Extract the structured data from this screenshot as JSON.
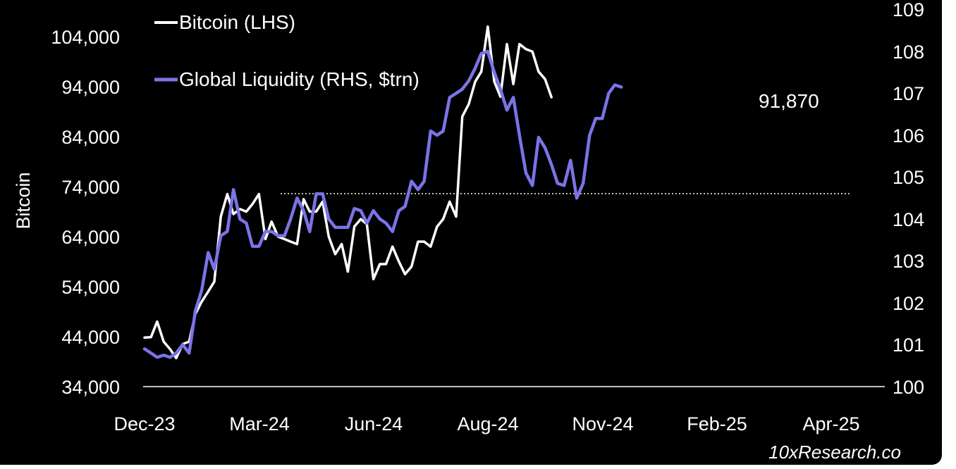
{
  "source": "10xResearch.co",
  "chart_data": {
    "type": "line",
    "title": "",
    "ylabel_left": "Bitcoin",
    "ylabel_right": "",
    "x_tick_labels": [
      "Dec-23",
      "Mar-24",
      "Jun-24",
      "Aug-24",
      "Nov-24",
      "Feb-25",
      "Apr-25"
    ],
    "y_left_ticks": [
      "34,000",
      "44,000",
      "54,000",
      "64,000",
      "74,000",
      "84,000",
      "94,000",
      "104,000"
    ],
    "y_right_ticks": [
      "100",
      "101",
      "102",
      "103",
      "104",
      "105",
      "106",
      "107",
      "108",
      "109"
    ],
    "y_left_range": [
      34000,
      104000
    ],
    "y_right_range": [
      100,
      109
    ],
    "grid": false,
    "legend_position": "top-left",
    "colors": {
      "bitcoin": "#ffffff",
      "liquidity": "#7b73e6",
      "reference_line": "#ffffff"
    },
    "annotation": "91,870",
    "reference_line_value": 72600,
    "series": [
      {
        "name": "Bitcoin (LHS)",
        "axis": "left",
        "color": "#ffffff",
        "points": [
          [
            0.0,
            43800
          ],
          [
            0.17,
            43900
          ],
          [
            0.33,
            47000
          ],
          [
            0.5,
            43000
          ],
          [
            0.67,
            41500
          ],
          [
            0.83,
            39700
          ],
          [
            1.0,
            42500
          ],
          [
            1.17,
            43000
          ],
          [
            1.33,
            48500
          ],
          [
            1.5,
            51000
          ],
          [
            1.67,
            53000
          ],
          [
            1.83,
            55000
          ],
          [
            2.0,
            68000
          ],
          [
            2.17,
            72500
          ],
          [
            2.33,
            68500
          ],
          [
            2.5,
            69500
          ],
          [
            2.67,
            69000
          ],
          [
            2.83,
            70500
          ],
          [
            3.0,
            72500
          ],
          [
            3.17,
            63500
          ],
          [
            3.33,
            67000
          ],
          [
            3.5,
            64000
          ],
          [
            3.67,
            63500
          ],
          [
            3.83,
            63000
          ],
          [
            4.0,
            62500
          ],
          [
            4.17,
            71500
          ],
          [
            4.33,
            69000
          ],
          [
            4.5,
            69000
          ],
          [
            4.67,
            71000
          ],
          [
            4.83,
            64000
          ],
          [
            5.0,
            60500
          ],
          [
            5.17,
            62500
          ],
          [
            5.33,
            57000
          ],
          [
            5.5,
            66000
          ],
          [
            5.67,
            67500
          ],
          [
            5.83,
            66500
          ],
          [
            6.0,
            55500
          ],
          [
            6.17,
            58500
          ],
          [
            6.33,
            58500
          ],
          [
            6.5,
            62000
          ],
          [
            6.67,
            59000
          ],
          [
            6.83,
            56500
          ],
          [
            7.0,
            58000
          ],
          [
            7.17,
            63000
          ],
          [
            7.33,
            63000
          ],
          [
            7.5,
            62000
          ],
          [
            7.67,
            66000
          ],
          [
            7.83,
            67500
          ],
          [
            8.0,
            71000
          ],
          [
            8.17,
            68000
          ],
          [
            8.33,
            88000
          ],
          [
            8.5,
            90500
          ],
          [
            8.67,
            95000
          ],
          [
            8.83,
            97000
          ],
          [
            9.0,
            106000
          ],
          [
            9.17,
            95000
          ],
          [
            9.33,
            92000
          ],
          [
            9.5,
            102500
          ],
          [
            9.67,
            94500
          ],
          [
            9.83,
            102500
          ],
          [
            10.0,
            101500
          ],
          [
            10.17,
            101000
          ],
          [
            10.33,
            97000
          ],
          [
            10.5,
            95500
          ],
          [
            10.67,
            91870
          ]
        ]
      },
      {
        "name": "Global Liquidity (RHS, $trn)",
        "axis": "right",
        "color": "#7b73e6",
        "points": [
          [
            0.0,
            100.9
          ],
          [
            0.17,
            100.8
          ],
          [
            0.33,
            100.7
          ],
          [
            0.5,
            100.75
          ],
          [
            0.67,
            100.7
          ],
          [
            0.83,
            100.8
          ],
          [
            1.0,
            101.0
          ],
          [
            1.17,
            100.8
          ],
          [
            1.33,
            101.8
          ],
          [
            1.5,
            102.3
          ],
          [
            1.67,
            103.2
          ],
          [
            1.83,
            102.8
          ],
          [
            2.0,
            103.6
          ],
          [
            2.17,
            103.7
          ],
          [
            2.33,
            104.7
          ],
          [
            2.5,
            104.0
          ],
          [
            2.67,
            103.9
          ],
          [
            2.83,
            103.35
          ],
          [
            3.0,
            103.35
          ],
          [
            3.17,
            103.7
          ],
          [
            3.33,
            103.7
          ],
          [
            3.5,
            103.6
          ],
          [
            3.67,
            103.6
          ],
          [
            3.83,
            104.0
          ],
          [
            4.0,
            104.5
          ],
          [
            4.17,
            104.2
          ],
          [
            4.33,
            103.7
          ],
          [
            4.5,
            104.6
          ],
          [
            4.67,
            104.6
          ],
          [
            4.83,
            104.0
          ],
          [
            5.0,
            103.8
          ],
          [
            5.17,
            103.8
          ],
          [
            5.33,
            103.8
          ],
          [
            5.5,
            104.25
          ],
          [
            5.67,
            104.2
          ],
          [
            5.83,
            103.9
          ],
          [
            6.0,
            104.2
          ],
          [
            6.17,
            104.0
          ],
          [
            6.33,
            103.9
          ],
          [
            6.5,
            103.7
          ],
          [
            6.67,
            104.2
          ],
          [
            6.83,
            104.3
          ],
          [
            7.0,
            104.9
          ],
          [
            7.17,
            104.7
          ],
          [
            7.33,
            104.9
          ],
          [
            7.5,
            106.1
          ],
          [
            7.67,
            106.0
          ],
          [
            7.83,
            106.1
          ],
          [
            8.0,
            106.9
          ],
          [
            8.17,
            107.0
          ],
          [
            8.33,
            107.1
          ],
          [
            8.5,
            107.3
          ],
          [
            8.67,
            107.6
          ],
          [
            8.83,
            107.95
          ],
          [
            9.0,
            108.0
          ],
          [
            9.17,
            107.5
          ],
          [
            9.33,
            107.1
          ],
          [
            9.5,
            106.6
          ],
          [
            9.67,
            106.9
          ],
          [
            9.83,
            106.0
          ],
          [
            10.0,
            105.1
          ],
          [
            10.17,
            104.8
          ],
          [
            10.33,
            105.95
          ],
          [
            10.5,
            105.7
          ],
          [
            10.67,
            105.3
          ],
          [
            10.83,
            104.85
          ],
          [
            11.0,
            104.8
          ],
          [
            11.17,
            105.4
          ],
          [
            11.33,
            104.5
          ],
          [
            11.5,
            104.85
          ],
          [
            11.67,
            106.0
          ],
          [
            11.83,
            106.4
          ],
          [
            12.0,
            106.4
          ],
          [
            12.17,
            107.0
          ],
          [
            12.33,
            107.2
          ],
          [
            12.5,
            107.15
          ]
        ]
      }
    ]
  }
}
